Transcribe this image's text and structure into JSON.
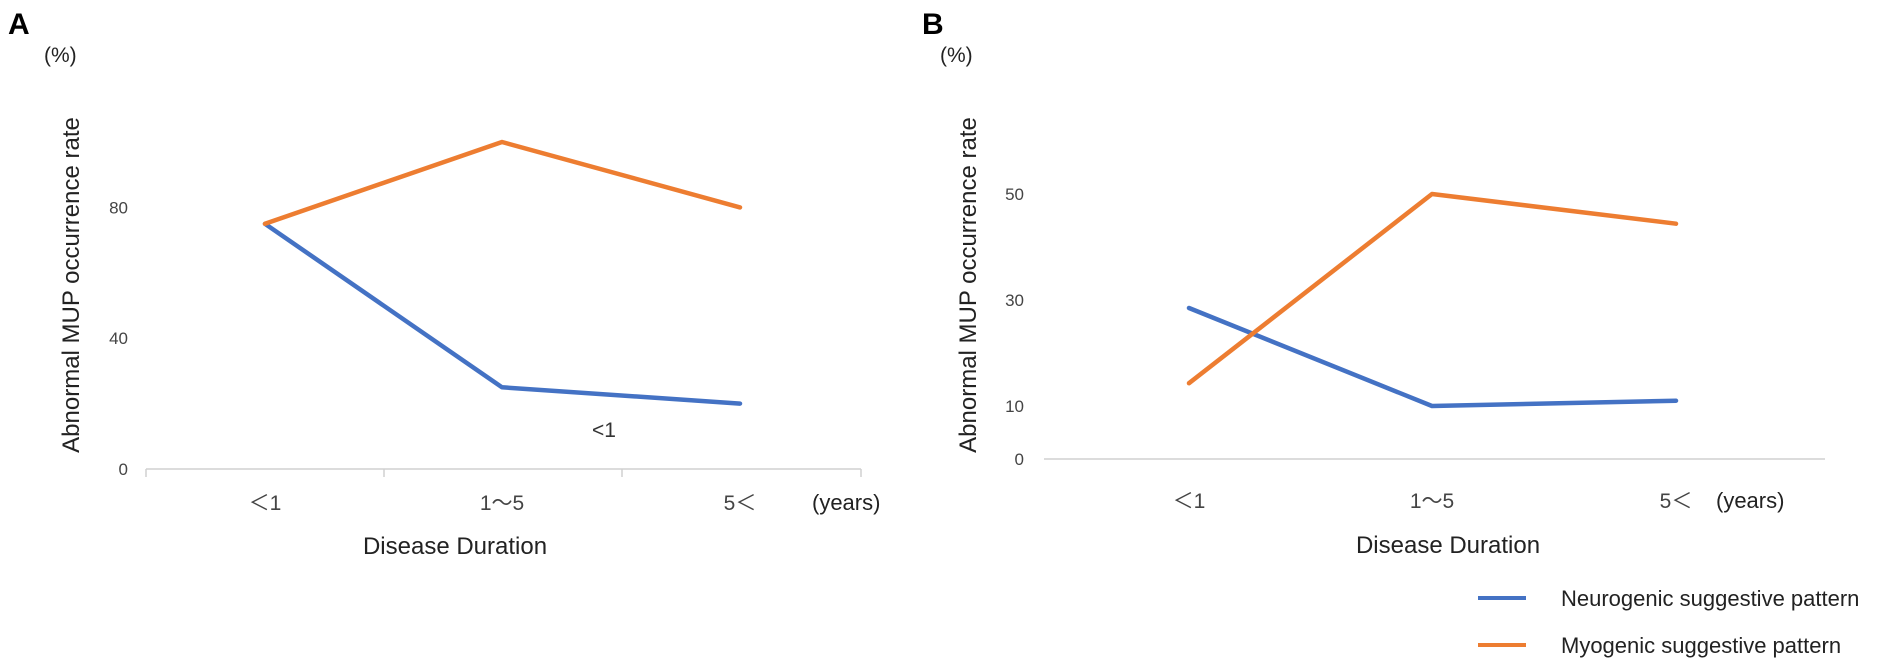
{
  "chart_data": [
    {
      "type": "line",
      "panel": "A",
      "unit_label": "(%)",
      "ylabel": "Abnormal MUP occurrence rate",
      "xlabel": "Disease Duration",
      "x_unit_label": "(years)",
      "categories": [
        "＜1",
        "1〜5",
        "5＜"
      ],
      "yticks": [
        0,
        40,
        80
      ],
      "ylim": [
        0,
        100
      ],
      "annotation": "<1",
      "series": [
        {
          "name": "Neurogenic suggestive pattern",
          "color": "#4472C4",
          "values": [
            75,
            25,
            20
          ]
        },
        {
          "name": "Myogenic suggestive pattern",
          "color": "#ED7D31",
          "values": [
            75,
            100,
            80
          ]
        }
      ]
    },
    {
      "type": "line",
      "panel": "B",
      "unit_label": "(%)",
      "ylabel": "Abnormal MUP occurrence rate",
      "xlabel": "Disease Duration",
      "x_unit_label": "(years)",
      "categories": [
        "＜1",
        "1〜5",
        "5＜"
      ],
      "yticks": [
        0,
        10,
        30,
        50
      ],
      "ylim": [
        0,
        60
      ],
      "series": [
        {
          "name": "Neurogenic suggestive pattern",
          "color": "#4472C4",
          "values": [
            28.5,
            10,
            11
          ]
        },
        {
          "name": "Myogenic suggestive pattern",
          "color": "#ED7D31",
          "values": [
            14.3,
            50,
            44.4
          ]
        }
      ]
    }
  ],
  "legend": [
    {
      "label": "Neurogenic suggestive pattern",
      "color": "#4472C4"
    },
    {
      "label": "Myogenic suggestive pattern",
      "color": "#ED7D31"
    }
  ]
}
